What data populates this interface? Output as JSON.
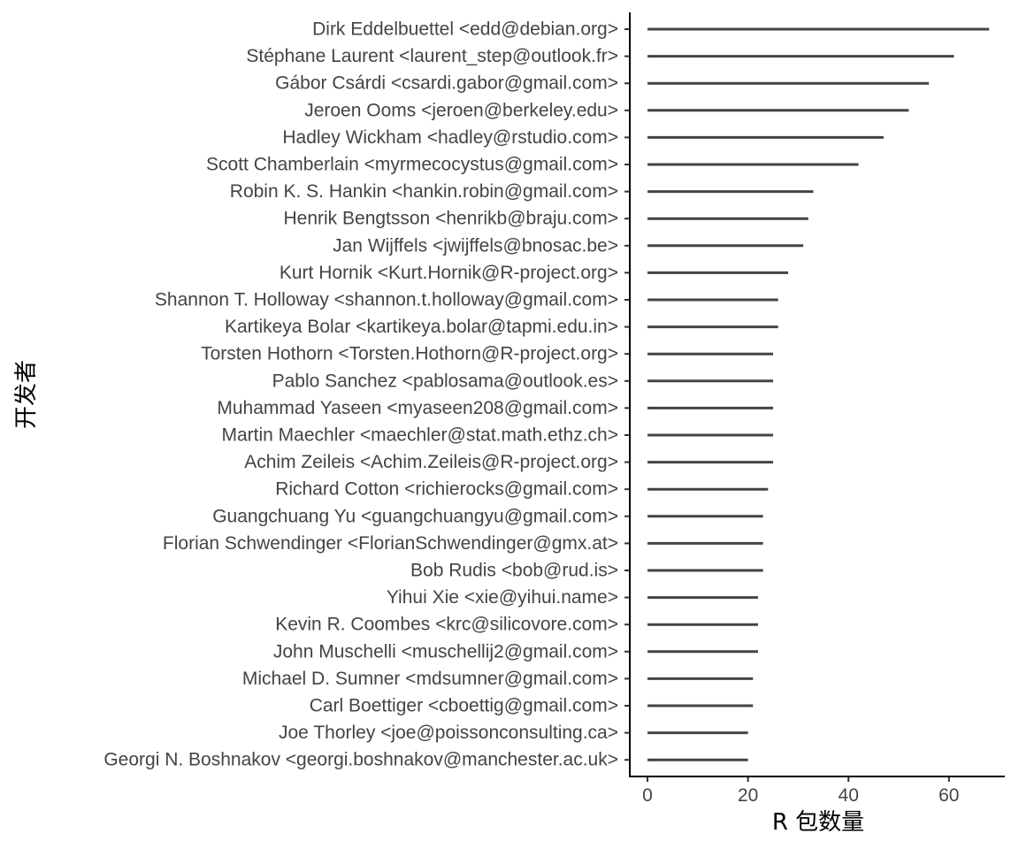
{
  "chart_data": {
    "type": "bar",
    "orientation": "horizontal",
    "xlabel": "R 包数量",
    "ylabel": "开发者",
    "xlim": [
      0,
      70
    ],
    "xticks": [
      0,
      20,
      40,
      60
    ],
    "grid": false,
    "bar_color": "#444444",
    "categories": [
      "Dirk Eddelbuettel <edd@debian.org>",
      "Stéphane Laurent <laurent_step@outlook.fr>",
      "Gábor Csárdi <csardi.gabor@gmail.com>",
      "Jeroen Ooms <jeroen@berkeley.edu>",
      "Hadley Wickham <hadley@rstudio.com>",
      "Scott Chamberlain <myrmecocystus@gmail.com>",
      "Robin K. S. Hankin <hankin.robin@gmail.com>",
      "Henrik Bengtsson <henrikb@braju.com>",
      "Jan Wijffels <jwijffels@bnosac.be>",
      "Kurt Hornik <Kurt.Hornik@R-project.org>",
      "Shannon T. Holloway <shannon.t.holloway@gmail.com>",
      "Kartikeya Bolar <kartikeya.bolar@tapmi.edu.in>",
      "Torsten Hothorn <Torsten.Hothorn@R-project.org>",
      "Pablo Sanchez <pablosama@outlook.es>",
      "Muhammad Yaseen <myaseen208@gmail.com>",
      "Martin Maechler <maechler@stat.math.ethz.ch>",
      "Achim Zeileis <Achim.Zeileis@R-project.org>",
      "Richard Cotton <richierocks@gmail.com>",
      "Guangchuang Yu <guangchuangyu@gmail.com>",
      "Florian Schwendinger <FlorianSchwendinger@gmx.at>",
      "Bob Rudis <bob@rud.is>",
      "Yihui Xie <xie@yihui.name>",
      "Kevin R. Coombes <krc@silicovore.com>",
      "John Muschelli <muschellij2@gmail.com>",
      "Michael D. Sumner <mdsumner@gmail.com>",
      "Carl Boettiger <cboettig@gmail.com>",
      "Joe Thorley <joe@poissonconsulting.ca>",
      "Georgi N. Boshnakov <georgi.boshnakov@manchester.ac.uk>"
    ],
    "values": [
      68,
      61,
      56,
      52,
      47,
      42,
      33,
      32,
      31,
      28,
      26,
      26,
      25,
      25,
      25,
      25,
      25,
      24,
      23,
      23,
      23,
      22,
      22,
      22,
      21,
      21,
      20,
      20
    ]
  }
}
